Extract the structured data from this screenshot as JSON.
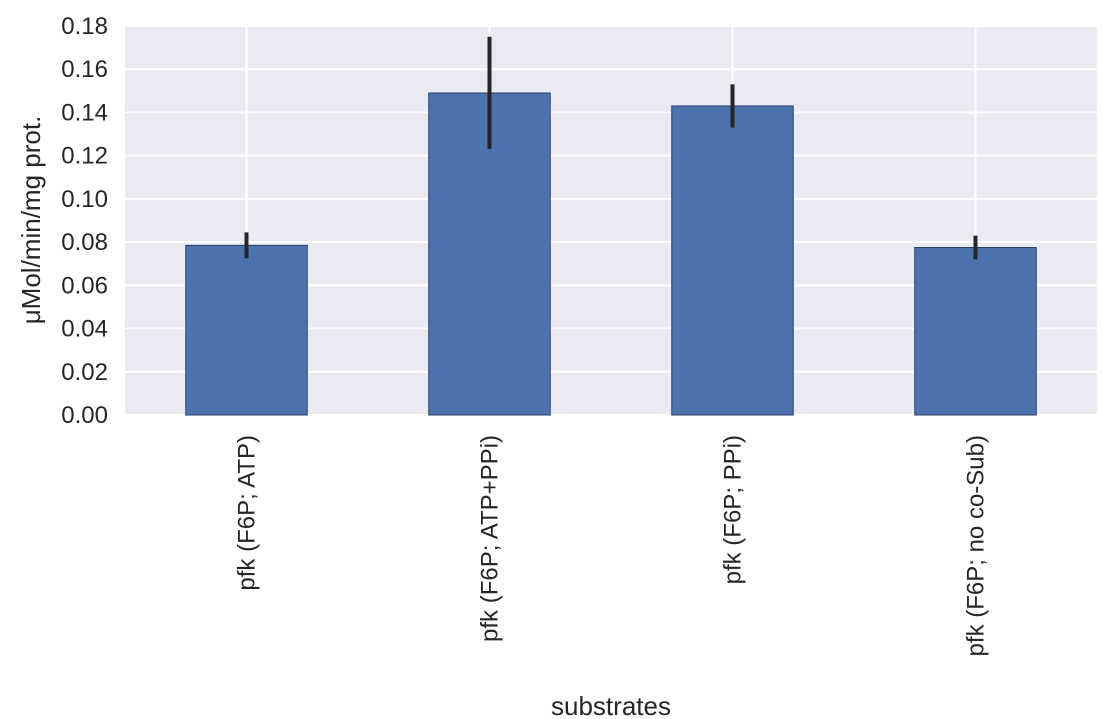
{
  "chart_data": {
    "type": "bar",
    "title": "",
    "xlabel": "substrates",
    "ylabel": "μMol/min/mg prot.",
    "ylim": [
      0,
      0.18
    ],
    "yticks": [
      0.0,
      0.02,
      0.04,
      0.06,
      0.08,
      0.1,
      0.12,
      0.14,
      0.16,
      0.18
    ],
    "ytick_labels": [
      "0.00",
      "0.02",
      "0.04",
      "0.06",
      "0.08",
      "0.10",
      "0.12",
      "0.14",
      "0.16",
      "0.18"
    ],
    "categories": [
      "pfk (F6P; ATP)",
      "pfk (F6P; ATP+PPi)",
      "pfk (F6P; PPi)",
      "pfk (F6P; no co-Sub)"
    ],
    "values": [
      0.0785,
      0.149,
      0.143,
      0.0775
    ],
    "error_low": [
      0.0725,
      0.123,
      0.133,
      0.072
    ],
    "error_high": [
      0.0845,
      0.175,
      0.153,
      0.083
    ],
    "grid": true,
    "colors": {
      "bar": "#4c72b0",
      "bar_edge": "#2a3f66",
      "error": "#262626",
      "plot_bg": "#eaeaf2",
      "grid": "#ffffff"
    }
  }
}
